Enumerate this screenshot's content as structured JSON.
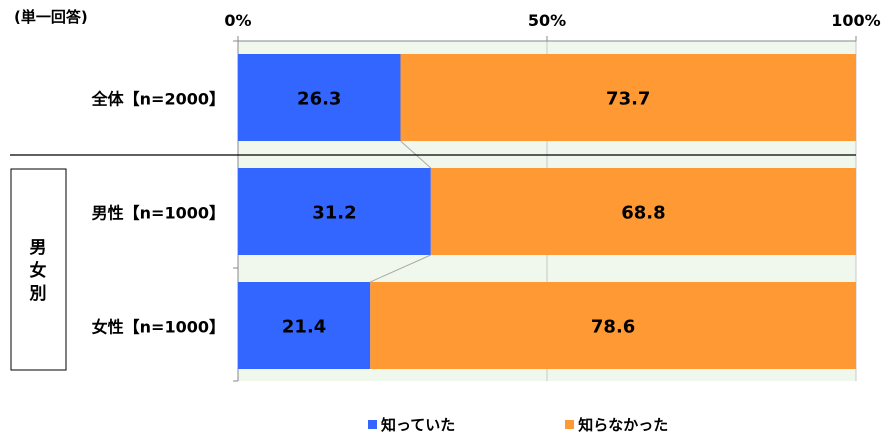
{
  "note": "(単一回答)",
  "chart_data": {
    "type": "bar",
    "orientation": "horizontal",
    "stacked": "100%",
    "categories": [
      "全体【n=2000】",
      "男性【n=1000】",
      "女性【n=1000】"
    ],
    "series": [
      {
        "name": "知っていた",
        "values": [
          26.3,
          31.2,
          21.4
        ],
        "color": "#3366ff"
      },
      {
        "name": "知らなかった",
        "values": [
          73.7,
          68.8,
          78.6
        ],
        "color": "#ff9933"
      }
    ],
    "xlim": [
      0,
      100
    ],
    "ticks": [
      "0%",
      "50%",
      "100%"
    ],
    "group_label": "男女別",
    "legend_position": "bottom",
    "plot_background": "#f0f8ee"
  }
}
